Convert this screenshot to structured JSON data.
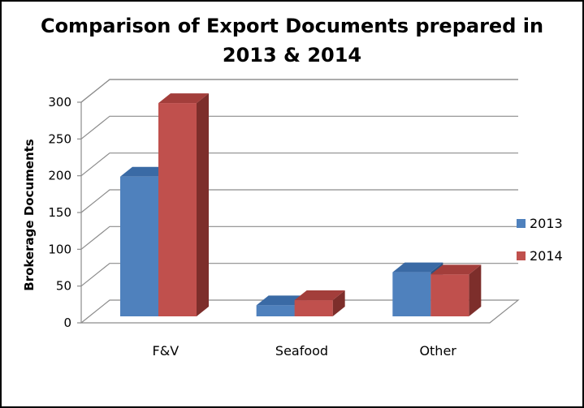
{
  "chart_data": {
    "type": "bar",
    "title_line1": "Comparison of Export Documents prepared in",
    "title_line2": "2013 & 2014",
    "ylabel": "Brokerage Documents",
    "xlabel": "",
    "categories": [
      "F&V",
      "Seafood",
      "Other"
    ],
    "series": [
      {
        "name": "2013",
        "values": [
          190,
          15,
          60
        ]
      },
      {
        "name": "2014",
        "values": [
          290,
          22,
          57
        ]
      }
    ],
    "ylim": [
      0,
      300
    ],
    "yticks": [
      0,
      50,
      100,
      150,
      200,
      250,
      300
    ],
    "grid": true,
    "legend_position": "right",
    "style": "3d-clustered-column",
    "colors": {
      "2013": {
        "front": "#4f81bd",
        "top": "#3a6aa5",
        "side": "#2c5282"
      },
      "2014": {
        "front": "#c0504d",
        "top": "#a33e3b",
        "side": "#7d2e2b"
      }
    }
  }
}
